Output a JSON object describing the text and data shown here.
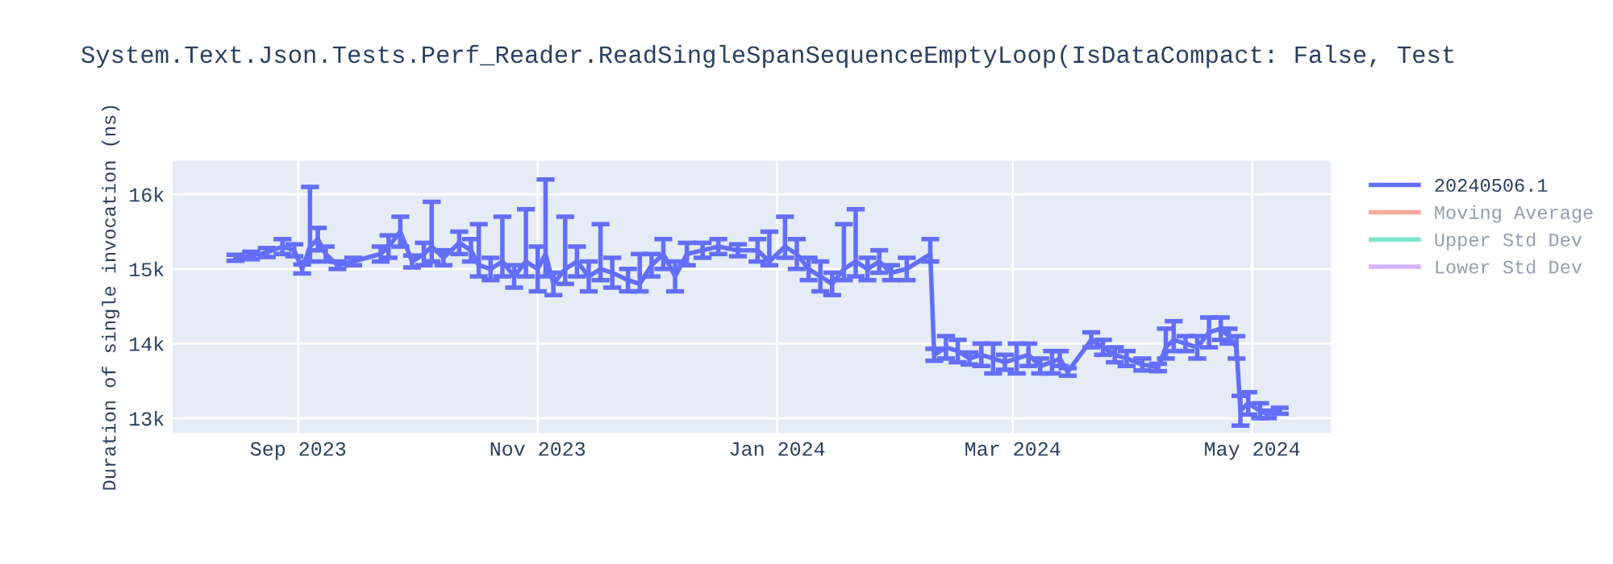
{
  "chart_data": {
    "type": "line",
    "title": "System.Text.Json.Tests.Perf_Reader.ReadSingleSpanSequenceEmptyLoop(IsDataCompact: False, Test",
    "ylabel": "Duration of single invocation (ns)",
    "x": [
      "2023-08-16",
      "2023-08-20",
      "2023-08-24",
      "2023-08-28",
      "2023-08-31",
      "2023-09-02",
      "2023-09-04",
      "2023-09-06",
      "2023-09-08",
      "2023-09-11",
      "2023-09-15",
      "2023-09-22",
      "2023-09-24",
      "2023-09-27",
      "2023-09-30",
      "2023-10-03",
      "2023-10-05",
      "2023-10-08",
      "2023-10-12",
      "2023-10-15",
      "2023-10-17",
      "2023-10-20",
      "2023-10-23",
      "2023-10-26",
      "2023-10-29",
      "2023-11-01",
      "2023-11-03",
      "2023-11-05",
      "2023-11-08",
      "2023-11-11",
      "2023-11-14",
      "2023-11-17",
      "2023-11-20",
      "2023-11-24",
      "2023-11-27",
      "2023-11-30",
      "2023-12-03",
      "2023-12-06",
      "2023-12-09",
      "2023-12-13",
      "2023-12-17",
      "2023-12-22",
      "2023-12-27",
      "2023-12-30",
      "2024-01-03",
      "2024-01-06",
      "2024-01-09",
      "2024-01-12",
      "2024-01-15",
      "2024-01-18",
      "2024-01-21",
      "2024-01-24",
      "2024-01-27",
      "2024-01-30",
      "2024-02-03",
      "2024-02-09",
      "2024-02-10",
      "2024-02-13",
      "2024-02-16",
      "2024-02-19",
      "2024-02-22",
      "2024-02-25",
      "2024-02-28",
      "2024-03-02",
      "2024-03-05",
      "2024-03-08",
      "2024-03-11",
      "2024-03-13",
      "2024-03-15",
      "2024-03-21",
      "2024-03-24",
      "2024-03-27",
      "2024-03-30",
      "2024-04-03",
      "2024-04-07",
      "2024-04-09",
      "2024-04-11",
      "2024-04-14",
      "2024-04-17",
      "2024-04-20",
      "2024-04-23",
      "2024-04-25",
      "2024-04-27",
      "2024-04-28",
      "2024-04-30",
      "2024-05-03",
      "2024-05-05",
      "2024-05-08"
    ],
    "series": [
      {
        "name": "20240506.1",
        "color": "#636efa",
        "values": [
          15150,
          15180,
          15220,
          15300,
          15250,
          15000,
          15300,
          15400,
          15200,
          15050,
          15100,
          15200,
          15300,
          15500,
          15100,
          15200,
          15300,
          15150,
          15350,
          15250,
          15050,
          15000,
          15100,
          14900,
          15100,
          15000,
          15200,
          14800,
          15000,
          15100,
          14900,
          15000,
          14950,
          14850,
          14800,
          15050,
          15200,
          14900,
          15200,
          15250,
          15300,
          15250,
          15250,
          15100,
          15300,
          15200,
          15000,
          14900,
          14800,
          15000,
          15100,
          15000,
          15100,
          14950,
          15000,
          15200,
          13850,
          13950,
          13900,
          13800,
          13850,
          13800,
          13750,
          13800,
          13850,
          13700,
          13750,
          13800,
          13620,
          14050,
          13950,
          13850,
          13800,
          13720,
          13680,
          13950,
          14050,
          14000,
          13950,
          14150,
          14200,
          14100,
          13950,
          13100,
          13200,
          13100,
          13050,
          13100
        ],
        "errors": [
          40,
          50,
          60,
          100,
          80,
          60,
          [
            15100,
            16100
          ],
          150,
          100,
          50,
          50,
          100,
          150,
          [
            15300,
            15700
          ],
          80,
          150,
          [
            15100,
            15900
          ],
          100,
          150,
          150,
          [
            14900,
            15600
          ],
          150,
          [
            14900,
            15700
          ],
          150,
          [
            14900,
            15800
          ],
          300,
          [
            14900,
            16200
          ],
          150,
          [
            14800,
            15700
          ],
          200,
          200,
          [
            14850,
            15600
          ],
          200,
          150,
          [
            14700,
            15200
          ],
          150,
          200,
          200,
          150,
          100,
          100,
          80,
          150,
          [
            15050,
            15500
          ],
          [
            15150,
            15700
          ],
          200,
          150,
          200,
          150,
          [
            14850,
            15600
          ],
          [
            14900,
            15800
          ],
          150,
          150,
          100,
          150,
          [
            15100,
            15400
          ],
          80,
          150,
          150,
          80,
          150,
          200,
          100,
          200,
          150,
          100,
          150,
          100,
          50,
          100,
          100,
          100,
          100,
          80,
          50,
          [
            13800,
            14200
          ],
          [
            13900,
            14300
          ],
          100,
          150,
          200,
          150,
          100,
          150,
          200,
          150,
          100,
          50,
          40
        ]
      },
      {
        "name": "Moving Average",
        "color": "#ef553b",
        "values": [
          null,
          null,
          null,
          null,
          null,
          null,
          null,
          null,
          null,
          null,
          null,
          null,
          null,
          null,
          null,
          null,
          null,
          null,
          null,
          null,
          null,
          null,
          null,
          null,
          null,
          null,
          null,
          null,
          null,
          null,
          null,
          null,
          null,
          null,
          null,
          null,
          null,
          null,
          null,
          null,
          null,
          null,
          null,
          null,
          null,
          null,
          null,
          null,
          null,
          null,
          null,
          null,
          null,
          null,
          null,
          null,
          null,
          null,
          null,
          null,
          null,
          null,
          null,
          null,
          null,
          null,
          null,
          null,
          null,
          null,
          null,
          null,
          null,
          null,
          null,
          null,
          null,
          null,
          null,
          null,
          null,
          null,
          null,
          null,
          null,
          null,
          null,
          null
        ]
      },
      {
        "name": "Upper Std Dev",
        "color": "#00cc96",
        "values": [
          null,
          null,
          null,
          null,
          null,
          null,
          null,
          null,
          null,
          null,
          null,
          null,
          null,
          null,
          null,
          null,
          null,
          null,
          null,
          null,
          null,
          null,
          null,
          null,
          null,
          null,
          null,
          null,
          null,
          null,
          null,
          null,
          null,
          null,
          null,
          null,
          null,
          null,
          null,
          null,
          null,
          null,
          null,
          null,
          null,
          null,
          null,
          null,
          null,
          null,
          null,
          null,
          null,
          null,
          null,
          null,
          null,
          null,
          null,
          null,
          null,
          null,
          null,
          null,
          null,
          null,
          null,
          null,
          null,
          null,
          null,
          null,
          null,
          null,
          null,
          null,
          null,
          null,
          null,
          null,
          null,
          null,
          null,
          null,
          null,
          null,
          null,
          null
        ]
      },
      {
        "name": "Lower Std Dev",
        "color": "#ab63fa",
        "values": [
          null,
          null,
          null,
          null,
          null,
          null,
          null,
          null,
          null,
          null,
          null,
          null,
          null,
          null,
          null,
          null,
          null,
          null,
          null,
          null,
          null,
          null,
          null,
          null,
          null,
          null,
          null,
          null,
          null,
          null,
          null,
          null,
          null,
          null,
          null,
          null,
          null,
          null,
          null,
          null,
          null,
          null,
          null,
          null,
          null,
          null,
          null,
          null,
          null,
          null,
          null,
          null,
          null,
          null,
          null,
          null,
          null,
          null,
          null,
          null,
          null,
          null,
          null,
          null,
          null,
          null,
          null,
          null,
          null,
          null,
          null,
          null,
          null,
          null,
          null,
          null,
          null,
          null,
          null,
          null,
          null,
          null,
          null,
          null,
          null,
          null,
          null,
          null
        ]
      }
    ],
    "xlim": [
      "2023-07-31",
      "2024-05-21"
    ],
    "xticks": [
      {
        "value": "2023-09-01",
        "label": "Sep 2023"
      },
      {
        "value": "2023-11-01",
        "label": "Nov 2023"
      },
      {
        "value": "2024-01-01",
        "label": "Jan 2024"
      },
      {
        "value": "2024-03-01",
        "label": "Mar 2024"
      },
      {
        "value": "2024-05-01",
        "label": "May 2024"
      }
    ],
    "ylim": [
      12800,
      16450
    ],
    "yticks": [
      {
        "value": 13000,
        "label": "13k"
      },
      {
        "value": 14000,
        "label": "14k"
      },
      {
        "value": 15000,
        "label": "15k"
      },
      {
        "value": 16000,
        "label": "16k"
      }
    ],
    "grid": true,
    "legend": "right",
    "marker": "none",
    "line_style": "solid"
  }
}
